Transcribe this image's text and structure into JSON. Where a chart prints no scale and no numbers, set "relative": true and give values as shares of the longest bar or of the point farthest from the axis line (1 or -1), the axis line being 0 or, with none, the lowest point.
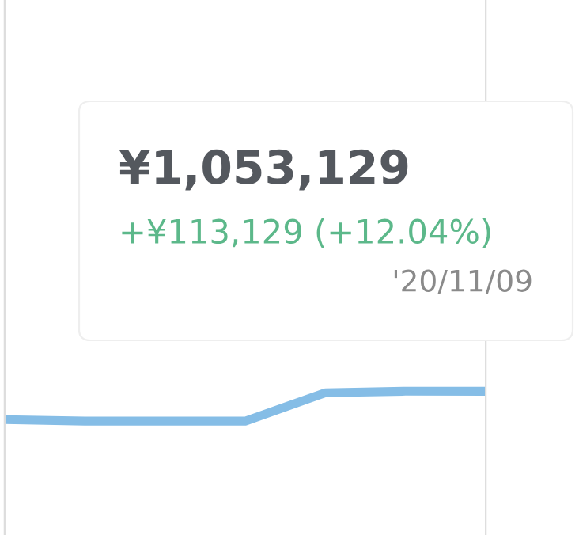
{
  "chart_data": {
    "type": "line",
    "relative": true,
    "categories": [
      null,
      null,
      null,
      null,
      null,
      null,
      null
    ],
    "series": [
      {
        "color": "#85bde6",
        "values": [
          0.05,
          0,
          0,
          0,
          0.95,
          1,
          1
        ]
      }
    ],
    "annotations": [
      "¥1,053,129",
      "+¥113,129 (+12.04%)",
      "'20/11/09"
    ],
    "grid": false,
    "legend": false
  }
}
